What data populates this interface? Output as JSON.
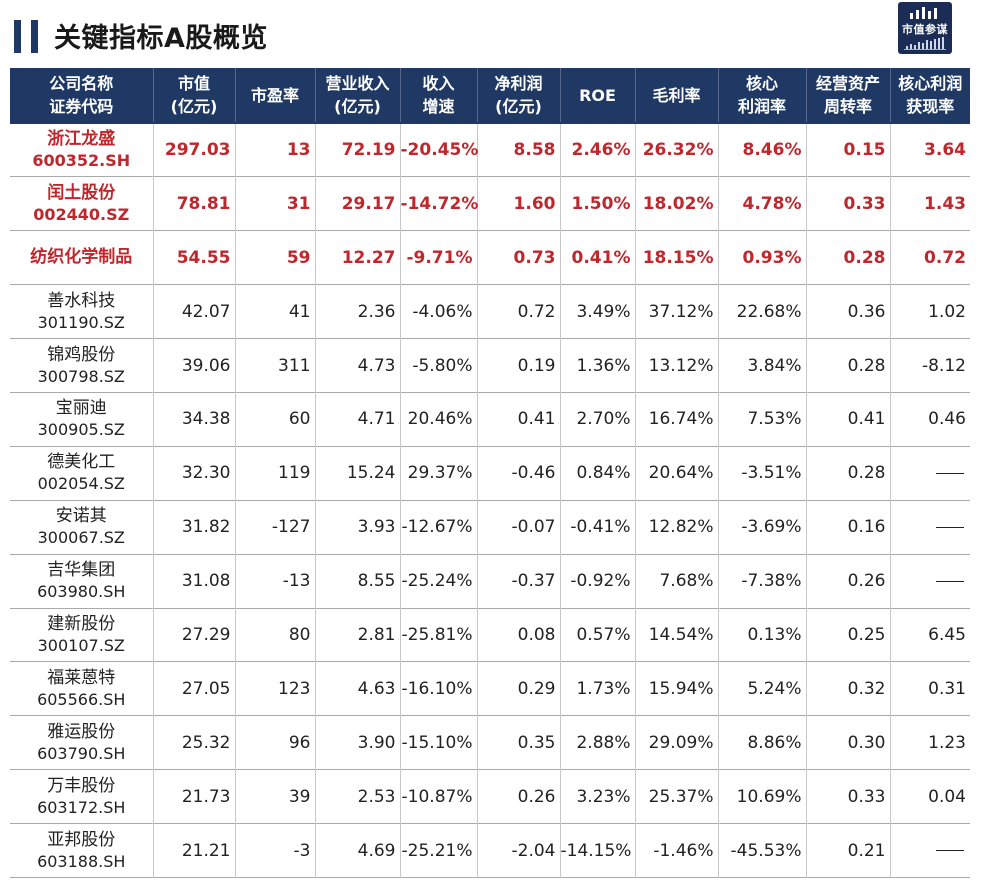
{
  "title": "关键指标A股概览",
  "logo": {
    "text": "市值参谋",
    "icon": "bar-chart-icon"
  },
  "colors": {
    "header_bg": "#1f3864",
    "highlight": "#c0272d"
  },
  "columns": [
    [
      "公司名称",
      "证券代码"
    ],
    [
      "市值",
      "(亿元)"
    ],
    [
      "市盈率"
    ],
    [
      "营业收入",
      "(亿元)"
    ],
    [
      "收入",
      "增速"
    ],
    [
      "净利润",
      "(亿元)"
    ],
    [
      "ROE"
    ],
    [
      "毛利率"
    ],
    [
      "核心",
      "利润率"
    ],
    [
      "经营资产",
      "周转率"
    ],
    [
      "核心利润",
      "获现率"
    ]
  ],
  "rows": [
    {
      "name": "浙江龙盛",
      "code": "600352.SH",
      "highlight": true,
      "values": [
        "297.03",
        "13",
        "72.19",
        "-20.45%",
        "8.58",
        "2.46%",
        "26.32%",
        "8.46%",
        "0.15",
        "3.64"
      ]
    },
    {
      "name": "闰土股份",
      "code": "002440.SZ",
      "highlight": true,
      "values": [
        "78.81",
        "31",
        "29.17",
        "-14.72%",
        "1.60",
        "1.50%",
        "18.02%",
        "4.78%",
        "0.33",
        "1.43"
      ]
    },
    {
      "name": "纺织化学制品",
      "code": "",
      "highlight": true,
      "values": [
        "54.55",
        "59",
        "12.27",
        "-9.71%",
        "0.73",
        "0.41%",
        "18.15%",
        "0.93%",
        "0.28",
        "0.72"
      ]
    },
    {
      "name": "善水科技",
      "code": "301190.SZ",
      "highlight": false,
      "values": [
        "42.07",
        "41",
        "2.36",
        "-4.06%",
        "0.72",
        "3.49%",
        "37.12%",
        "22.68%",
        "0.36",
        "1.02"
      ]
    },
    {
      "name": "锦鸡股份",
      "code": "300798.SZ",
      "highlight": false,
      "values": [
        "39.06",
        "311",
        "4.73",
        "-5.80%",
        "0.19",
        "1.36%",
        "13.12%",
        "3.84%",
        "0.28",
        "-8.12"
      ]
    },
    {
      "name": "宝丽迪",
      "code": "300905.SZ",
      "highlight": false,
      "values": [
        "34.38",
        "60",
        "4.71",
        "20.46%",
        "0.41",
        "2.70%",
        "16.74%",
        "7.53%",
        "0.41",
        "0.46"
      ]
    },
    {
      "name": "德美化工",
      "code": "002054.SZ",
      "highlight": false,
      "values": [
        "32.30",
        "119",
        "15.24",
        "29.37%",
        "-0.46",
        "0.84%",
        "20.64%",
        "-3.51%",
        "0.28",
        "—"
      ]
    },
    {
      "name": "安诺其",
      "code": "300067.SZ",
      "highlight": false,
      "values": [
        "31.82",
        "-127",
        "3.93",
        "-12.67%",
        "-0.07",
        "-0.41%",
        "12.82%",
        "-3.69%",
        "0.16",
        "—"
      ]
    },
    {
      "name": "吉华集团",
      "code": "603980.SH",
      "highlight": false,
      "values": [
        "31.08",
        "-13",
        "8.55",
        "-25.24%",
        "-0.37",
        "-0.92%",
        "7.68%",
        "-7.38%",
        "0.26",
        "—"
      ]
    },
    {
      "name": "建新股份",
      "code": "300107.SZ",
      "highlight": false,
      "values": [
        "27.29",
        "80",
        "2.81",
        "-25.81%",
        "0.08",
        "0.57%",
        "14.54%",
        "0.13%",
        "0.25",
        "6.45"
      ]
    },
    {
      "name": "福莱蒽特",
      "code": "605566.SH",
      "highlight": false,
      "values": [
        "27.05",
        "123",
        "4.63",
        "-16.10%",
        "0.29",
        "1.73%",
        "15.94%",
        "5.24%",
        "0.32",
        "0.31"
      ]
    },
    {
      "name": "雅运股份",
      "code": "603790.SH",
      "highlight": false,
      "values": [
        "25.32",
        "96",
        "3.90",
        "-15.10%",
        "0.35",
        "2.88%",
        "29.09%",
        "8.86%",
        "0.30",
        "1.23"
      ]
    },
    {
      "name": "万丰股份",
      "code": "603172.SH",
      "highlight": false,
      "values": [
        "21.73",
        "39",
        "2.53",
        "-10.87%",
        "0.26",
        "3.23%",
        "25.37%",
        "10.69%",
        "0.33",
        "0.04"
      ]
    },
    {
      "name": "亚邦股份",
      "code": "603188.SH",
      "highlight": false,
      "values": [
        "21.21",
        "-3",
        "4.69",
        "-25.21%",
        "-2.04",
        "-14.15%",
        "-1.46%",
        "-45.53%",
        "0.21",
        "—"
      ]
    }
  ]
}
